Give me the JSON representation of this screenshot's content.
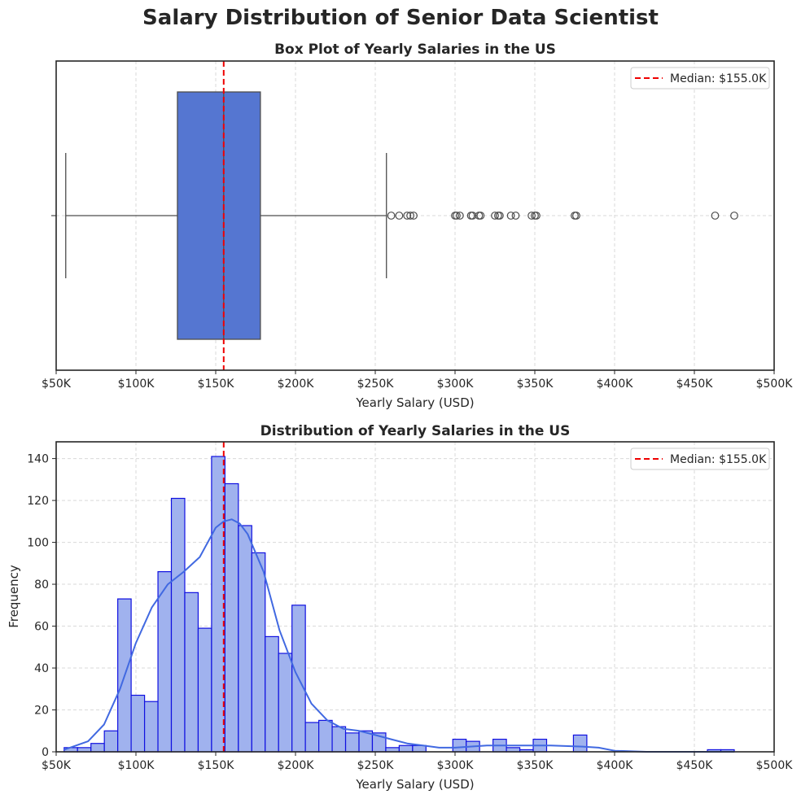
{
  "figure_title": "Salary Distribution of Senior Data Scientist",
  "colors": {
    "box_fill": "#5576d1",
    "hist_fill": "#a0b2ee",
    "hist_edge": "#1010e0",
    "kde": "#4169e1",
    "median": "#ee0000",
    "grid": "#d9d9d9",
    "whisker": "#4d4d4d"
  },
  "chart_data": [
    {
      "type": "box",
      "title": "Box Plot of Yearly Salaries in the US",
      "xlabel": "Yearly Salary (USD)",
      "ylabel": "",
      "xlim": [
        50000,
        500000
      ],
      "xticks": [
        50000,
        100000,
        150000,
        200000,
        250000,
        300000,
        350000,
        400000,
        450000,
        500000
      ],
      "xtick_labels": [
        "$50K",
        "$100K",
        "$150K",
        "$200K",
        "$250K",
        "$300K",
        "$350K",
        "$400K",
        "$450K",
        "$500K"
      ],
      "grid": true,
      "legend": {
        "label": "Median: $155.0K",
        "placement": "top-right"
      },
      "box": {
        "whisker_low": 56000,
        "q1": 126000,
        "median": 155000,
        "q3": 178000,
        "whisker_high": 257000
      },
      "outliers": [
        260000,
        265000,
        270000,
        272000,
        274000,
        300000,
        301000,
        303000,
        310000,
        311000,
        315000,
        316000,
        325000,
        327000,
        328000,
        335000,
        338000,
        348000,
        350000,
        351000,
        375000,
        376000,
        463000,
        475000
      ],
      "median_line": 155000
    },
    {
      "type": "histogram",
      "title": "Distribution of Yearly Salaries in the US",
      "xlabel": "Yearly Salary (USD)",
      "ylabel": "Frequency",
      "xlim": [
        50000,
        500000
      ],
      "ylim": [
        0,
        148
      ],
      "xticks": [
        50000,
        100000,
        150000,
        200000,
        250000,
        300000,
        350000,
        400000,
        450000,
        500000
      ],
      "xtick_labels": [
        "$50K",
        "$100K",
        "$150K",
        "$200K",
        "$250K",
        "$300K",
        "$350K",
        "$400K",
        "$450K",
        "$500K"
      ],
      "yticks": [
        0,
        20,
        40,
        60,
        80,
        100,
        120,
        140
      ],
      "ytick_labels": [
        "0",
        "20",
        "40",
        "60",
        "80",
        "100",
        "120",
        "140"
      ],
      "grid": true,
      "legend": {
        "label": "Median: $155.0K",
        "placement": "top-right"
      },
      "median_line": 155000,
      "bin_start": 55000,
      "bin_width": 8400,
      "counts": [
        2,
        2,
        4,
        10,
        73,
        27,
        24,
        86,
        121,
        76,
        59,
        141,
        128,
        108,
        95,
        55,
        47,
        70,
        14,
        15,
        12,
        9,
        10,
        9,
        2,
        3,
        3,
        0,
        0,
        6,
        5,
        0,
        6,
        2,
        1,
        6,
        0,
        0,
        8,
        0,
        0,
        0,
        0,
        0,
        0,
        0,
        0,
        0,
        1,
        1
      ],
      "kde": {
        "x": [
          55000,
          70000,
          80000,
          90000,
          100000,
          110000,
          120000,
          130000,
          140000,
          145000,
          150000,
          155000,
          160000,
          165000,
          170000,
          180000,
          190000,
          200000,
          210000,
          220000,
          230000,
          240000,
          250000,
          260000,
          270000,
          280000,
          290000,
          300000,
          320000,
          340000,
          360000,
          380000,
          390000,
          400000,
          420000,
          450000,
          475000
        ],
        "y": [
          1,
          5,
          13,
          30,
          52,
          69,
          80,
          86,
          93,
          100,
          107,
          110,
          111,
          109,
          104,
          86,
          58,
          38,
          23,
          15,
          11,
          10,
          8,
          6,
          4,
          3,
          2,
          2,
          3,
          3,
          3,
          2.5,
          2,
          0.5,
          0,
          0,
          0
        ]
      }
    }
  ]
}
